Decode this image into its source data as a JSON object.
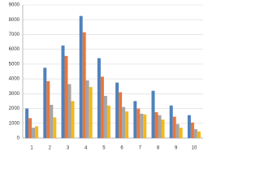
{
  "chart_data": {
    "type": "bar",
    "categories": [
      "1",
      "2",
      "3",
      "4",
      "5",
      "6",
      "7",
      "8",
      "9",
      "10"
    ],
    "series": [
      {
        "color": "#4f81bd",
        "values": [
          2000,
          4750,
          6250,
          8250,
          5400,
          3750,
          2500,
          3200,
          2200,
          1550
        ]
      },
      {
        "color": "#e8773a",
        "values": [
          1350,
          3850,
          5550,
          7150,
          4150,
          3100,
          2000,
          1750,
          1450,
          1050
        ]
      },
      {
        "color": "#a5a5a5",
        "values": [
          700,
          2250,
          3650,
          3900,
          2850,
          2100,
          1650,
          1550,
          950,
          600
        ]
      },
      {
        "color": "#f2b81e",
        "values": [
          800,
          1400,
          2500,
          3450,
          2200,
          1800,
          1600,
          1250,
          700,
          450
        ]
      }
    ],
    "ylim": [
      0,
      9000
    ],
    "yticks": [
      0,
      1000,
      2000,
      3000,
      4000,
      5000,
      6000,
      7000,
      8000,
      9000
    ],
    "grid": true
  }
}
